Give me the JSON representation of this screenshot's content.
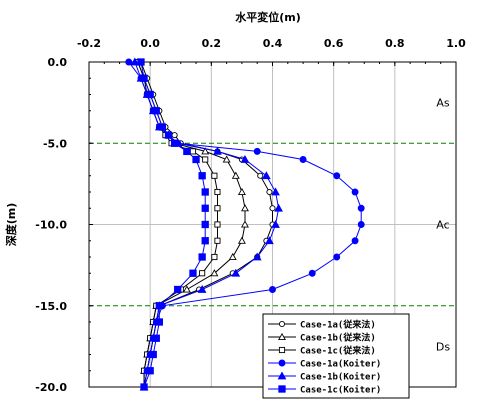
{
  "chart_data": {
    "type": "line",
    "title": "水平変位(m)",
    "xlabel": "水平変位(m)",
    "ylabel": "深度(m)",
    "xlim": [
      -0.2,
      1.0
    ],
    "ylim": [
      -20.0,
      0.0
    ],
    "xticks": [
      "-0.2",
      "0.0",
      "0.2",
      "0.4",
      "0.6",
      "0.8",
      "1.0"
    ],
    "yticks": [
      "0.0",
      "-5.0",
      "-10.0",
      "-15.0",
      "-20.0"
    ],
    "grid": true,
    "layer_boundaries": [
      -5.0,
      -15.0
    ],
    "layers": [
      {
        "name": "As",
        "depth": -2.5
      },
      {
        "name": "Ac",
        "depth": -10.0
      },
      {
        "name": "Ds",
        "depth": -17.5
      }
    ],
    "legend_position": "bottom-right",
    "colors": {
      "conventional": "#000000",
      "koiter": "#0000ff",
      "boundary": "#008000",
      "grid": "#c0c0c0"
    },
    "series": [
      {
        "name": "Case-1a(従来法)",
        "marker": "circle-open",
        "color": "#000000",
        "points": [
          [
            -0.03,
            0.0
          ],
          [
            -0.01,
            -1.0
          ],
          [
            0.01,
            -2.0
          ],
          [
            0.03,
            -3.0
          ],
          [
            0.05,
            -4.0
          ],
          [
            0.08,
            -4.5
          ],
          [
            0.1,
            -5.0
          ],
          [
            0.22,
            -5.5
          ],
          [
            0.3,
            -6.0
          ],
          [
            0.36,
            -7.0
          ],
          [
            0.39,
            -8.0
          ],
          [
            0.4,
            -9.0
          ],
          [
            0.4,
            -10.0
          ],
          [
            0.38,
            -11.0
          ],
          [
            0.35,
            -12.0
          ],
          [
            0.27,
            -13.0
          ],
          [
            0.16,
            -14.0
          ],
          [
            0.03,
            -15.0
          ],
          [
            0.02,
            -16.0
          ],
          [
            0.01,
            -17.0
          ],
          [
            0.0,
            -18.0
          ],
          [
            -0.01,
            -19.0
          ],
          [
            -0.02,
            -20.0
          ]
        ]
      },
      {
        "name": "Case-1b(従来法)",
        "marker": "triangle-open",
        "color": "#000000",
        "points": [
          [
            -0.04,
            0.0
          ],
          [
            -0.02,
            -1.0
          ],
          [
            0.0,
            -2.0
          ],
          [
            0.02,
            -3.0
          ],
          [
            0.04,
            -4.0
          ],
          [
            0.06,
            -4.5
          ],
          [
            0.08,
            -5.0
          ],
          [
            0.18,
            -5.5
          ],
          [
            0.25,
            -6.0
          ],
          [
            0.28,
            -7.0
          ],
          [
            0.3,
            -8.0
          ],
          [
            0.31,
            -9.0
          ],
          [
            0.31,
            -10.0
          ],
          [
            0.3,
            -11.0
          ],
          [
            0.27,
            -12.0
          ],
          [
            0.21,
            -13.0
          ],
          [
            0.12,
            -14.0
          ],
          [
            0.02,
            -15.0
          ],
          [
            0.01,
            -16.0
          ],
          [
            0.0,
            -17.0
          ],
          [
            -0.01,
            -18.0
          ],
          [
            -0.02,
            -19.0
          ],
          [
            -0.02,
            -20.0
          ]
        ]
      },
      {
        "name": "Case-1c(従来法)",
        "marker": "square-open",
        "color": "#000000",
        "points": [
          [
            -0.04,
            0.0
          ],
          [
            -0.02,
            -1.0
          ],
          [
            -0.01,
            -2.0
          ],
          [
            0.01,
            -3.0
          ],
          [
            0.03,
            -4.0
          ],
          [
            0.05,
            -4.5
          ],
          [
            0.07,
            -5.0
          ],
          [
            0.14,
            -5.5
          ],
          [
            0.18,
            -6.0
          ],
          [
            0.21,
            -7.0
          ],
          [
            0.22,
            -8.0
          ],
          [
            0.22,
            -9.0
          ],
          [
            0.22,
            -10.0
          ],
          [
            0.22,
            -11.0
          ],
          [
            0.21,
            -12.0
          ],
          [
            0.17,
            -13.0
          ],
          [
            0.1,
            -14.0
          ],
          [
            0.02,
            -15.0
          ],
          [
            0.01,
            -16.0
          ],
          [
            0.0,
            -17.0
          ],
          [
            -0.01,
            -18.0
          ],
          [
            -0.02,
            -19.0
          ],
          [
            -0.02,
            -20.0
          ]
        ]
      },
      {
        "name": "Case-1a(Koiter)",
        "marker": "circle-filled",
        "color": "#0000ff",
        "points": [
          [
            -0.07,
            0.0
          ],
          [
            -0.03,
            -1.0
          ],
          [
            -0.01,
            -2.0
          ],
          [
            0.01,
            -3.0
          ],
          [
            0.03,
            -4.0
          ],
          [
            0.06,
            -4.5
          ],
          [
            0.09,
            -5.0
          ],
          [
            0.35,
            -5.5
          ],
          [
            0.5,
            -6.0
          ],
          [
            0.61,
            -7.0
          ],
          [
            0.67,
            -8.0
          ],
          [
            0.69,
            -9.0
          ],
          [
            0.69,
            -10.0
          ],
          [
            0.67,
            -11.0
          ],
          [
            0.61,
            -12.0
          ],
          [
            0.53,
            -13.0
          ],
          [
            0.4,
            -14.0
          ],
          [
            0.04,
            -15.0
          ],
          [
            0.02,
            -16.0
          ],
          [
            0.01,
            -17.0
          ],
          [
            0.0,
            -18.0
          ],
          [
            -0.01,
            -19.0
          ],
          [
            -0.02,
            -20.0
          ]
        ]
      },
      {
        "name": "Case-1b(Koiter)",
        "marker": "triangle-filled",
        "color": "#0000ff",
        "points": [
          [
            -0.05,
            0.0
          ],
          [
            -0.03,
            -1.0
          ],
          [
            -0.01,
            -2.0
          ],
          [
            0.01,
            -3.0
          ],
          [
            0.03,
            -4.0
          ],
          [
            0.06,
            -4.5
          ],
          [
            0.09,
            -5.0
          ],
          [
            0.22,
            -5.5
          ],
          [
            0.31,
            -6.0
          ],
          [
            0.38,
            -7.0
          ],
          [
            0.41,
            -8.0
          ],
          [
            0.42,
            -9.0
          ],
          [
            0.41,
            -10.0
          ],
          [
            0.39,
            -11.0
          ],
          [
            0.35,
            -12.0
          ],
          [
            0.28,
            -13.0
          ],
          [
            0.17,
            -14.0
          ],
          [
            0.03,
            -15.0
          ],
          [
            0.02,
            -16.0
          ],
          [
            0.01,
            -17.0
          ],
          [
            0.0,
            -18.0
          ],
          [
            -0.01,
            -19.0
          ],
          [
            -0.02,
            -20.0
          ]
        ]
      },
      {
        "name": "Case-1c(Koiter)",
        "marker": "square-filled",
        "color": "#0000ff",
        "points": [
          [
            -0.03,
            0.0
          ],
          [
            -0.02,
            -1.0
          ],
          [
            0.0,
            -2.0
          ],
          [
            0.02,
            -3.0
          ],
          [
            0.04,
            -4.0
          ],
          [
            0.06,
            -4.5
          ],
          [
            0.08,
            -5.0
          ],
          [
            0.12,
            -5.5
          ],
          [
            0.15,
            -6.0
          ],
          [
            0.17,
            -7.0
          ],
          [
            0.18,
            -8.0
          ],
          [
            0.18,
            -9.0
          ],
          [
            0.18,
            -10.0
          ],
          [
            0.18,
            -11.0
          ],
          [
            0.17,
            -12.0
          ],
          [
            0.14,
            -13.0
          ],
          [
            0.09,
            -14.0
          ],
          [
            0.03,
            -15.0
          ],
          [
            0.03,
            -16.0
          ],
          [
            0.02,
            -17.0
          ],
          [
            0.01,
            -18.0
          ],
          [
            0.0,
            -19.0
          ],
          [
            -0.02,
            -20.0
          ]
        ]
      }
    ]
  }
}
